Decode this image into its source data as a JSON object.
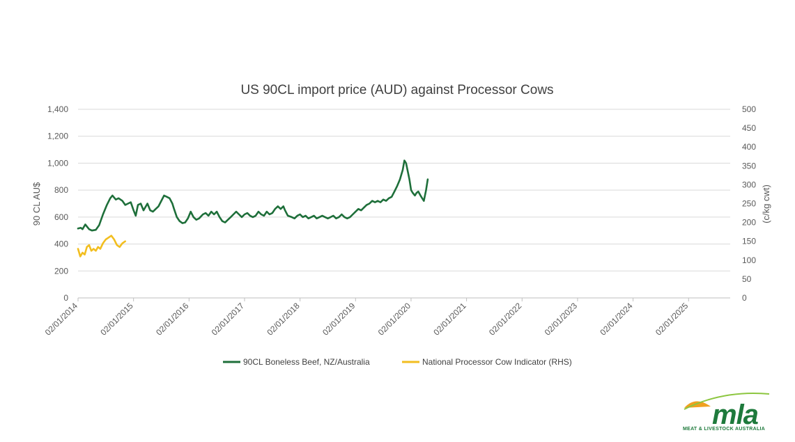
{
  "chart_data": {
    "type": "line",
    "title": "US 90CL import price (AUD) against Processor Cows",
    "ylabel": "90 CL AU$",
    "y2label": "(c/kg cwt)",
    "ylim": [
      0,
      1400
    ],
    "y2lim": [
      0,
      500
    ],
    "yticks": [
      "0",
      "200",
      "400",
      "600",
      "800",
      "1,000",
      "1,200",
      "1,400"
    ],
    "y2ticks": [
      "0",
      "50",
      "100",
      "150",
      "200",
      "250",
      "300",
      "350",
      "400",
      "450",
      "500"
    ],
    "xlim": [
      2014.0,
      2025.75
    ],
    "xticks": [
      "02/01/2014",
      "02/01/2015",
      "02/01/2016",
      "02/01/2017",
      "02/01/2018",
      "02/01/2019",
      "02/01/2020",
      "02/01/2021",
      "02/01/2022",
      "02/01/2023",
      "02/01/2024",
      "02/01/2025"
    ],
    "legend_position": "bottom",
    "series": [
      {
        "name": "90CL Boneless Beef, NZ/Australia",
        "axis": "left",
        "color": "#1e6f3a",
        "points": [
          [
            2014.0,
            515
          ],
          [
            2014.05,
            520
          ],
          [
            2014.08,
            510
          ],
          [
            2014.13,
            545
          ],
          [
            2014.2,
            510
          ],
          [
            2014.25,
            500
          ],
          [
            2014.32,
            505
          ],
          [
            2014.38,
            540
          ],
          [
            2014.45,
            620
          ],
          [
            2014.52,
            690
          ],
          [
            2014.58,
            740
          ],
          [
            2014.62,
            760
          ],
          [
            2014.68,
            730
          ],
          [
            2014.73,
            740
          ],
          [
            2014.8,
            720
          ],
          [
            2014.85,
            690
          ],
          [
            2014.9,
            700
          ],
          [
            2014.95,
            710
          ],
          [
            2015.0,
            650
          ],
          [
            2015.04,
            610
          ],
          [
            2015.08,
            690
          ],
          [
            2015.13,
            700
          ],
          [
            2015.18,
            650
          ],
          [
            2015.25,
            700
          ],
          [
            2015.3,
            650
          ],
          [
            2015.35,
            640
          ],
          [
            2015.4,
            660
          ],
          [
            2015.45,
            680
          ],
          [
            2015.5,
            720
          ],
          [
            2015.55,
            760
          ],
          [
            2015.6,
            750
          ],
          [
            2015.65,
            740
          ],
          [
            2015.7,
            700
          ],
          [
            2015.73,
            660
          ],
          [
            2015.78,
            600
          ],
          [
            2015.83,
            570
          ],
          [
            2015.88,
            555
          ],
          [
            2015.93,
            560
          ],
          [
            2015.98,
            590
          ],
          [
            2016.03,
            640
          ],
          [
            2016.08,
            600
          ],
          [
            2016.13,
            580
          ],
          [
            2016.18,
            590
          ],
          [
            2016.25,
            620
          ],
          [
            2016.3,
            630
          ],
          [
            2016.35,
            610
          ],
          [
            2016.4,
            640
          ],
          [
            2016.45,
            620
          ],
          [
            2016.5,
            640
          ],
          [
            2016.55,
            600
          ],
          [
            2016.6,
            570
          ],
          [
            2016.65,
            560
          ],
          [
            2016.7,
            580
          ],
          [
            2016.75,
            600
          ],
          [
            2016.8,
            620
          ],
          [
            2016.85,
            640
          ],
          [
            2016.9,
            620
          ],
          [
            2016.95,
            600
          ],
          [
            2017.0,
            620
          ],
          [
            2017.05,
            630
          ],
          [
            2017.1,
            610
          ],
          [
            2017.15,
            600
          ],
          [
            2017.2,
            610
          ],
          [
            2017.25,
            640
          ],
          [
            2017.3,
            620
          ],
          [
            2017.35,
            610
          ],
          [
            2017.4,
            640
          ],
          [
            2017.45,
            620
          ],
          [
            2017.5,
            630
          ],
          [
            2017.55,
            660
          ],
          [
            2017.6,
            680
          ],
          [
            2017.65,
            660
          ],
          [
            2017.7,
            680
          ],
          [
            2017.73,
            650
          ],
          [
            2017.78,
            610
          ],
          [
            2017.85,
            600
          ],
          [
            2017.9,
            590
          ],
          [
            2017.95,
            610
          ],
          [
            2018.0,
            620
          ],
          [
            2018.05,
            600
          ],
          [
            2018.1,
            610
          ],
          [
            2018.15,
            590
          ],
          [
            2018.2,
            600
          ],
          [
            2018.25,
            610
          ],
          [
            2018.3,
            590
          ],
          [
            2018.35,
            600
          ],
          [
            2018.4,
            610
          ],
          [
            2018.45,
            600
          ],
          [
            2018.5,
            590
          ],
          [
            2018.55,
            600
          ],
          [
            2018.6,
            610
          ],
          [
            2018.65,
            590
          ],
          [
            2018.7,
            600
          ],
          [
            2018.75,
            620
          ],
          [
            2018.8,
            600
          ],
          [
            2018.85,
            590
          ],
          [
            2018.9,
            600
          ],
          [
            2018.95,
            620
          ],
          [
            2019.0,
            640
          ],
          [
            2019.05,
            660
          ],
          [
            2019.1,
            650
          ],
          [
            2019.15,
            670
          ],
          [
            2019.2,
            690
          ],
          [
            2019.25,
            700
          ],
          [
            2019.3,
            720
          ],
          [
            2019.35,
            710
          ],
          [
            2019.4,
            720
          ],
          [
            2019.45,
            710
          ],
          [
            2019.5,
            730
          ],
          [
            2019.55,
            720
          ],
          [
            2019.6,
            740
          ],
          [
            2019.65,
            750
          ],
          [
            2019.7,
            790
          ],
          [
            2019.75,
            830
          ],
          [
            2019.8,
            880
          ],
          [
            2019.85,
            950
          ],
          [
            2019.88,
            1020
          ],
          [
            2019.91,
            1000
          ],
          [
            2019.94,
            940
          ],
          [
            2019.97,
            880
          ],
          [
            2020.0,
            800
          ],
          [
            2020.03,
            780
          ],
          [
            2020.07,
            760
          ],
          [
            2020.1,
            780
          ],
          [
            2020.13,
            790
          ],
          [
            2020.17,
            760
          ],
          [
            2020.2,
            740
          ],
          [
            2020.23,
            720
          ],
          [
            2020.27,
            800
          ],
          [
            2020.3,
            880
          ]
        ]
      },
      {
        "name": "National Processor Cow Indicator (RHS)",
        "axis": "right",
        "color": "#f2be1f",
        "points": [
          [
            2014.0,
            130
          ],
          [
            2014.04,
            110
          ],
          [
            2014.08,
            120
          ],
          [
            2014.12,
            115
          ],
          [
            2014.16,
            135
          ],
          [
            2014.2,
            140
          ],
          [
            2014.24,
            125
          ],
          [
            2014.28,
            130
          ],
          [
            2014.32,
            125
          ],
          [
            2014.36,
            135
          ],
          [
            2014.4,
            130
          ],
          [
            2014.45,
            145
          ],
          [
            2014.5,
            155
          ],
          [
            2014.55,
            160
          ],
          [
            2014.6,
            165
          ],
          [
            2014.65,
            155
          ],
          [
            2014.7,
            140
          ],
          [
            2014.75,
            135
          ],
          [
            2014.8,
            145
          ],
          [
            2014.85,
            150
          ]
        ]
      }
    ]
  },
  "legend": {
    "series1_label": "90CL Boneless Beef, NZ/Australia",
    "series2_label": "National Processor Cow Indicator (RHS)"
  },
  "logo": {
    "wordmark": "mla",
    "tagline": "MEAT & LIVESTOCK AUSTRALIA",
    "colors": {
      "green": "#1e7a3c",
      "orange": "#f0a020",
      "light_green": "#8cc63f"
    }
  }
}
